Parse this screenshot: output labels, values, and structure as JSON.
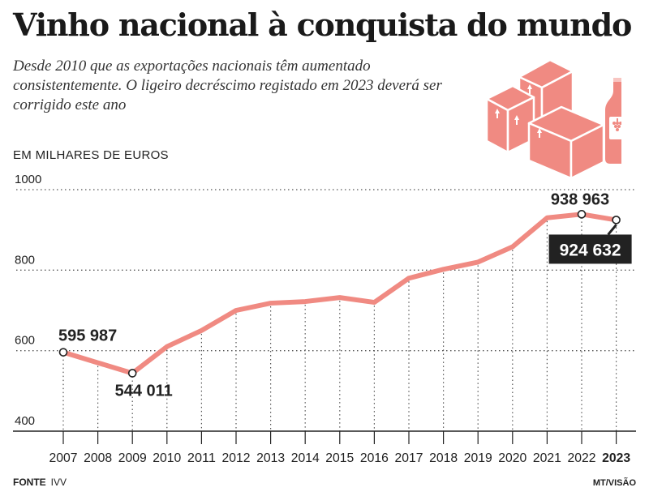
{
  "header": {
    "title": "Vinho nacional à conquista do mundo",
    "subtitle": "Desde 2010 que as exportações nacionais têm aumentado consistentemente. O ligeiro decréscimo registado em 2023 deverá ser corrigido este ano"
  },
  "footer": {
    "source_label": "FONTE",
    "source_value": "IVV",
    "credit": "MT/VISÃO"
  },
  "illustration": {
    "icons": [
      "boxes-icon",
      "wine-bottle-icon"
    ],
    "color": "#f08a82"
  },
  "chart_data": {
    "type": "line",
    "unit_label": "EM MILHARES DE EUROS",
    "x": [
      "2007",
      "2008",
      "2009",
      "2010",
      "2011",
      "2012",
      "2013",
      "2014",
      "2015",
      "2016",
      "2017",
      "2018",
      "2019",
      "2020",
      "2021",
      "2022",
      "2023"
    ],
    "values": [
      595987,
      570000,
      544011,
      610000,
      650000,
      700000,
      718000,
      722000,
      732000,
      720000,
      780000,
      802000,
      820000,
      858000,
      930000,
      938963,
      924632
    ],
    "ylim": [
      400,
      1000
    ],
    "y_ticks": [
      "400",
      "600",
      "800",
      "1000"
    ],
    "y_tick_values": [
      400,
      600,
      800,
      1000
    ],
    "grid": true,
    "line_color": "#f08a82",
    "annotations": [
      {
        "index": 0,
        "label": "595 987",
        "style": "plain"
      },
      {
        "index": 2,
        "label": "544 011",
        "style": "plain"
      },
      {
        "index": 15,
        "label": "938 963",
        "style": "plain"
      },
      {
        "index": 16,
        "label": "924 632",
        "style": "boxed"
      }
    ],
    "highlight_x": "2023"
  }
}
